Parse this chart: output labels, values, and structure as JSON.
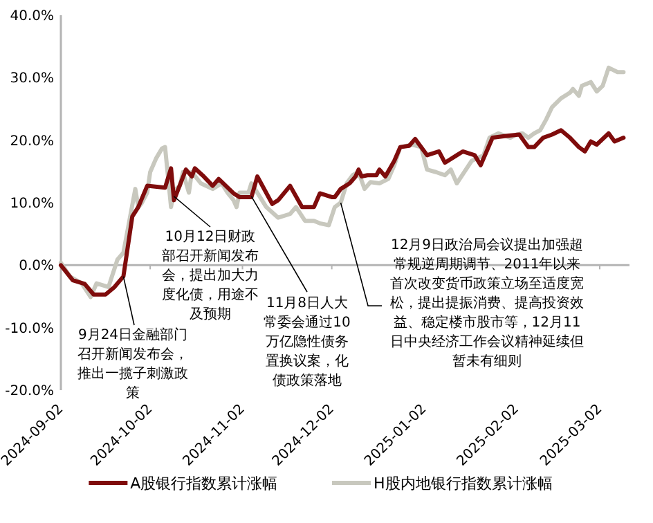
{
  "chart_data": {
    "type": "line",
    "xlim": [
      "2024-09-02",
      "2025-03-12"
    ],
    "xticks": [
      {
        "value": "2024-09-02",
        "label": "2024-09-02"
      },
      {
        "value": "2024-10-02",
        "label": "2024-10-02"
      },
      {
        "value": "2024-11-02",
        "label": "2024-11-02"
      },
      {
        "value": "2024-12-02",
        "label": "2024-12-02"
      },
      {
        "value": "2025-01-02",
        "label": "2025-01-02"
      },
      {
        "value": "2025-02-02",
        "label": "2025-02-02"
      },
      {
        "value": "2025-03-02",
        "label": "2025-03-02"
      }
    ],
    "ylim": [
      -20,
      40
    ],
    "yticks": [
      {
        "value": -20,
        "label": "-20.0%"
      },
      {
        "value": -10,
        "label": "-10.0%"
      },
      {
        "value": 0,
        "label": "0.0%"
      },
      {
        "value": 10,
        "label": "10.0%"
      },
      {
        "value": 20,
        "label": "20.0%"
      },
      {
        "value": 30,
        "label": "30.0%"
      },
      {
        "value": 40,
        "label": "40.0%"
      }
    ],
    "legend": "bottom",
    "marker": "none",
    "line_style": "solid",
    "series": [
      {
        "name": "A股银行指数累计涨幅",
        "color": "#7f0c0c",
        "x": [
          "2024-09-02",
          "2024-09-06",
          "2024-09-10",
          "2024-09-13",
          "2024-09-17",
          "2024-09-20",
          "2024-09-23",
          "2024-09-26",
          "2024-09-28",
          "2024-10-01",
          "2024-10-07",
          "2024-10-09",
          "2024-10-10",
          "2024-10-14",
          "2024-10-16",
          "2024-10-17",
          "2024-10-20",
          "2024-10-23",
          "2024-10-25",
          "2024-10-30",
          "2024-11-01",
          "2024-11-05",
          "2024-11-07",
          "2024-11-12",
          "2024-11-14",
          "2024-11-18",
          "2024-11-22",
          "2024-11-26",
          "2024-11-28",
          "2024-12-02",
          "2024-12-03",
          "2024-12-05",
          "2024-12-08",
          "2024-12-10",
          "2024-12-11",
          "2024-12-12",
          "2024-12-14",
          "2024-12-17",
          "2024-12-18",
          "2024-12-20",
          "2024-12-23",
          "2024-12-25",
          "2024-12-28",
          "2024-12-30",
          "2025-01-01",
          "2025-01-03",
          "2025-01-07",
          "2025-01-09",
          "2025-01-13",
          "2025-01-15",
          "2025-01-19",
          "2025-01-21",
          "2025-01-25",
          "2025-01-30",
          "2025-02-03",
          "2025-02-06",
          "2025-02-08",
          "2025-02-11",
          "2025-02-14",
          "2025-02-17",
          "2025-02-20",
          "2025-02-23",
          "2025-02-25",
          "2025-02-27",
          "2025-03-01",
          "2025-03-05",
          "2025-03-07",
          "2025-03-10"
        ],
        "values": [
          0,
          -2.4,
          -3,
          -4.7,
          -4.7,
          -3.5,
          -1.8,
          7.8,
          9.3,
          12.7,
          12.4,
          15.5,
          10.4,
          15.3,
          14.2,
          15.5,
          14.2,
          12.7,
          13.8,
          11.5,
          10.9,
          10.9,
          14.2,
          9.8,
          10.4,
          12.7,
          9.3,
          9.3,
          11.5,
          10.9,
          10.9,
          12.2,
          13.1,
          14.2,
          15.3,
          14.2,
          14.4,
          14.4,
          15.3,
          14.2,
          16.7,
          18.9,
          19.1,
          20.2,
          18.9,
          17.6,
          18.2,
          16.4,
          17.6,
          18.2,
          17.6,
          16,
          20.4,
          20.7,
          20.9,
          18.9,
          18.9,
          20.4,
          20.9,
          21.6,
          20.4,
          18.9,
          18.2,
          19.8,
          19.3,
          21.1,
          19.8,
          20.4
        ]
      },
      {
        "name": "H股内地银行指数累计涨幅",
        "color": "#c8c8be",
        "x": [
          "2024-09-02",
          "2024-09-05",
          "2024-09-09",
          "2024-09-12",
          "2024-09-14",
          "2024-09-18",
          "2024-09-21",
          "2024-09-23",
          "2024-09-25",
          "2024-09-27",
          "2024-09-28",
          "2024-09-29",
          "2024-10-01",
          "2024-10-02",
          "2024-10-04",
          "2024-10-06",
          "2024-10-07",
          "2024-10-09",
          "2024-10-10",
          "2024-10-12",
          "2024-10-13",
          "2024-10-15",
          "2024-10-16",
          "2024-10-19",
          "2024-10-23",
          "2024-10-26",
          "2024-10-28",
          "2024-10-30",
          "2024-10-31",
          "2024-11-01",
          "2024-11-04",
          "2024-11-05",
          "2024-11-07",
          "2024-11-10",
          "2024-11-14",
          "2024-11-18",
          "2024-11-20",
          "2024-11-23",
          "2024-11-26",
          "2024-11-28",
          "2024-12-01",
          "2024-12-03",
          "2024-12-05",
          "2024-12-07",
          "2024-12-09",
          "2024-12-11",
          "2024-12-13",
          "2024-12-15",
          "2024-12-18",
          "2024-12-21",
          "2024-12-23",
          "2024-12-25",
          "2024-12-29",
          "2025-01-01",
          "2025-01-03",
          "2025-01-06",
          "2025-01-09",
          "2025-01-11",
          "2025-01-13",
          "2025-01-18",
          "2025-01-22",
          "2025-01-24",
          "2025-01-27",
          "2025-01-31",
          "2025-02-02",
          "2025-02-04",
          "2025-02-06",
          "2025-02-08",
          "2025-02-10",
          "2025-02-12",
          "2025-02-14",
          "2025-02-17",
          "2025-02-20",
          "2025-02-21",
          "2025-02-23",
          "2025-02-24",
          "2025-02-27",
          "2025-03-01",
          "2025-03-03",
          "2025-03-05",
          "2025-03-08",
          "2025-03-10"
        ],
        "values": [
          0.4,
          -1.8,
          -2.9,
          -5.1,
          -2.9,
          -3.5,
          0.9,
          2,
          7.1,
          12.2,
          9.3,
          9.8,
          11.6,
          14.9,
          17.1,
          18.7,
          18.9,
          9.3,
          12,
          12.7,
          14.9,
          11.6,
          14.9,
          13.1,
          12.2,
          13.1,
          11.6,
          10.4,
          9.3,
          11.6,
          11.6,
          13.1,
          11.6,
          9.3,
          7.6,
          8.2,
          9.3,
          7.1,
          7.1,
          6.7,
          6.4,
          9.3,
          10,
          13.1,
          14.4,
          14.9,
          12.2,
          13.3,
          13.1,
          13.8,
          16,
          18.9,
          19.3,
          18.9,
          15.3,
          14.9,
          14.4,
          15.3,
          13.1,
          16.7,
          17.6,
          20.4,
          21.1,
          20.4,
          20.9,
          21.1,
          20.4,
          21.1,
          21.6,
          23.3,
          25.3,
          26.7,
          27.6,
          28.2,
          27.1,
          28.7,
          29.3,
          27.8,
          28.7,
          31.6,
          30.9,
          30.9
        ]
      }
    ],
    "annotations": [
      {
        "text": "9月24日金融部门召开新闻发布会，推出一揽子刺激政策",
        "x": "2024-09-23",
        "y": -1.8
      },
      {
        "text": "10月12日财政部召开新闻发布会，提出加大力度化债，用途不及预期",
        "x": "2024-10-10",
        "y": 11
      },
      {
        "text": "11月8日人大常委会通过10万亿隐性债务置换议案，化债政策落地",
        "x": "2024-11-05",
        "y": 11
      },
      {
        "text": "12月9日政治局会议提出加强超常规逆周期调节、2011年以来首次改变货币政策立场至适度宽松，提出提振消费、提高投资效益、稳定楼市股市等，12月11日中央经济工作会议精神延续但暂未有细则",
        "x": "2024-12-05",
        "y": 10
      }
    ]
  }
}
